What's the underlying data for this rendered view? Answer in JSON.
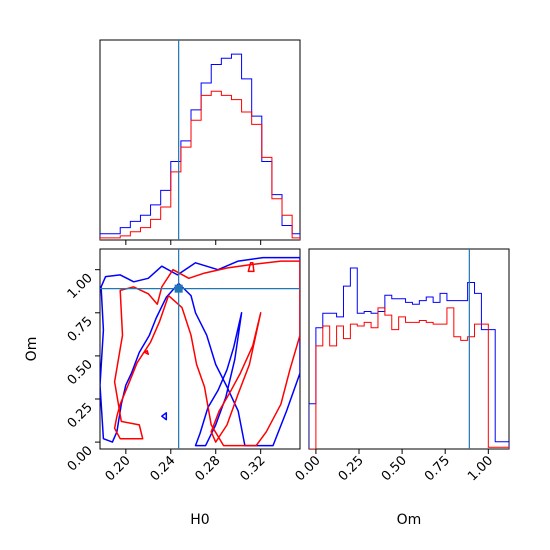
{
  "chart_data": {
    "type": "corner",
    "title": "",
    "parameters": [
      "H0",
      "Om"
    ],
    "xlabel_h0": "H0",
    "xlabel_om": "Om",
    "ylabel_om": "Om",
    "truth": {
      "H0": 0.247,
      "Om": 0.89
    },
    "colors": {
      "blue": "#0000ff",
      "red": "#ff0000",
      "truth": "#1f77b4"
    },
    "h0_range": [
      0.177,
      0.355
    ],
    "om_range": [
      -0.04,
      1.12
    ],
    "h0_ticks": [
      "0.20",
      "0.24",
      "0.28",
      "0.32"
    ],
    "h0_tick_values": [
      0.2,
      0.24,
      0.28,
      0.32
    ],
    "om_ticks": [
      "0.00",
      "0.25",
      "0.50",
      "0.75",
      "1.00"
    ],
    "om_tick_values": [
      0.0,
      0.25,
      0.5,
      0.75,
      1.0
    ],
    "series": [
      {
        "color": "#0000ff",
        "h0_edges": [
          0.177,
          0.186,
          0.195,
          0.204,
          0.213,
          0.222,
          0.231,
          0.24,
          0.249,
          0.258,
          0.267,
          0.276,
          0.285,
          0.294,
          0.303,
          0.312,
          0.321,
          0.33,
          0.339,
          0.348,
          0.355
        ],
        "h0_hist": [
          0.03,
          0.03,
          0.06,
          0.09,
          0.12,
          0.17,
          0.24,
          0.38,
          0.48,
          0.63,
          0.76,
          0.85,
          0.88,
          0.9,
          0.78,
          0.6,
          0.38,
          0.22,
          0.07,
          0.03
        ],
        "om_edges": [
          -0.04,
          0.0,
          0.04,
          0.08,
          0.12,
          0.16,
          0.2,
          0.24,
          0.28,
          0.32,
          0.36,
          0.4,
          0.44,
          0.48,
          0.52,
          0.56,
          0.6,
          0.64,
          0.68,
          0.72,
          0.76,
          0.8,
          0.84,
          0.88,
          0.92,
          0.96,
          1.0,
          1.04,
          1.08,
          1.12
        ],
        "om_hist": [
          0.25,
          0.67,
          0.75,
          0.75,
          0.73,
          0.9,
          1.0,
          0.75,
          0.76,
          0.75,
          0.76,
          0.85,
          0.83,
          0.83,
          0.81,
          0.8,
          0.82,
          0.84,
          0.81,
          0.86,
          0.82,
          0.82,
          0.82,
          0.92,
          0.86,
          0.66,
          0.66,
          0.04,
          0.04
        ],
        "contours": [
          [
            [
              0.182,
              0.96
            ],
            [
              0.195,
              0.97
            ],
            [
              0.207,
              0.93
            ],
            [
              0.22,
              0.95
            ],
            [
              0.232,
              1.02
            ],
            [
              0.246,
              0.97
            ],
            [
              0.262,
              1.04
            ],
            [
              0.282,
              1.0
            ],
            [
              0.3,
              1.05
            ],
            [
              0.322,
              1.07
            ],
            [
              0.355,
              1.07
            ],
            [
              0.355,
              0.4
            ],
            [
              0.343,
              0.18
            ],
            [
              0.331,
              -0.02
            ],
            [
              0.306,
              -0.02
            ],
            [
              0.3,
              0.18
            ],
            [
              0.29,
              0.32
            ],
            [
              0.28,
              0.45
            ],
            [
              0.272,
              0.62
            ],
            [
              0.262,
              0.75
            ],
            [
              0.258,
              0.85
            ],
            [
              0.247,
              0.92
            ],
            [
              0.236,
              0.84
            ],
            [
              0.227,
              0.72
            ],
            [
              0.221,
              0.62
            ],
            [
              0.212,
              0.52
            ],
            [
              0.205,
              0.4
            ],
            [
              0.2,
              0.33
            ],
            [
              0.196,
              0.22
            ],
            [
              0.192,
              0.06
            ],
            [
              0.188,
              0.0
            ],
            [
              0.18,
              0.02
            ],
            [
              0.177,
              0.33
            ],
            [
              0.18,
              0.65
            ],
            [
              0.178,
              0.9
            ],
            [
              0.182,
              0.96
            ]
          ],
          [
            [
              0.303,
              0.75
            ],
            [
              0.296,
              0.55
            ],
            [
              0.29,
              0.42
            ],
            [
              0.282,
              0.3
            ],
            [
              0.273,
              0.2
            ],
            [
              0.266,
              0.05
            ],
            [
              0.262,
              -0.02
            ],
            [
              0.271,
              -0.02
            ],
            [
              0.28,
              0.1
            ],
            [
              0.289,
              0.26
            ],
            [
              0.297,
              0.48
            ],
            [
              0.303,
              0.75
            ]
          ],
          [
            [
              0.232,
              0.15
            ],
            [
              0.236,
              0.13
            ],
            [
              0.236,
              0.17
            ],
            [
              0.232,
              0.15
            ]
          ]
        ]
      },
      {
        "color": "#ff0000",
        "h0_edges": [
          0.177,
          0.186,
          0.195,
          0.204,
          0.213,
          0.222,
          0.231,
          0.24,
          0.249,
          0.258,
          0.267,
          0.276,
          0.285,
          0.294,
          0.303,
          0.312,
          0.321,
          0.33,
          0.339,
          0.348,
          0.355
        ],
        "h0_hist": [
          0.01,
          0.01,
          0.02,
          0.04,
          0.06,
          0.1,
          0.16,
          0.33,
          0.45,
          0.58,
          0.7,
          0.72,
          0.7,
          0.68,
          0.62,
          0.56,
          0.4,
          0.2,
          0.12,
          0.01
        ],
        "om_edges": [
          -0.04,
          0.0,
          0.04,
          0.08,
          0.12,
          0.16,
          0.2,
          0.24,
          0.28,
          0.32,
          0.36,
          0.4,
          0.44,
          0.48,
          0.52,
          0.56,
          0.6,
          0.64,
          0.68,
          0.72,
          0.76,
          0.8,
          0.84,
          0.88,
          0.92,
          0.96,
          1.0,
          1.04,
          1.08,
          1.12
        ],
        "om_hist": [
          0.0,
          0.57,
          0.68,
          0.57,
          0.68,
          0.61,
          0.69,
          0.68,
          0.7,
          0.67,
          0.78,
          0.74,
          0.66,
          0.73,
          0.7,
          0.7,
          0.71,
          0.7,
          0.69,
          0.69,
          0.78,
          0.62,
          0.6,
          0.62,
          0.69,
          0.69,
          0.01,
          0.01,
          0.01
        ],
        "contours": [
          [
            [
              0.195,
              0.88
            ],
            [
              0.207,
              0.9
            ],
            [
              0.22,
              0.86
            ],
            [
              0.228,
              0.8
            ],
            [
              0.232,
              0.9
            ],
            [
              0.242,
              1.0
            ],
            [
              0.256,
              0.95
            ],
            [
              0.27,
              0.98
            ],
            [
              0.29,
              1.01
            ],
            [
              0.312,
              1.03
            ],
            [
              0.338,
              1.05
            ],
            [
              0.355,
              1.05
            ],
            [
              0.355,
              0.62
            ],
            [
              0.346,
              0.42
            ],
            [
              0.338,
              0.22
            ],
            [
              0.325,
              0.06
            ],
            [
              0.316,
              -0.02
            ],
            [
              0.287,
              -0.02
            ],
            [
              0.276,
              0.1
            ],
            [
              0.27,
              0.32
            ],
            [
              0.263,
              0.45
            ],
            [
              0.258,
              0.62
            ],
            [
              0.25,
              0.78
            ],
            [
              0.238,
              0.85
            ],
            [
              0.23,
              0.7
            ],
            [
              0.222,
              0.58
            ],
            [
              0.21,
              0.46
            ],
            [
              0.202,
              0.33
            ],
            [
              0.195,
              0.22
            ],
            [
              0.192,
              0.15
            ],
            [
              0.19,
              0.08
            ],
            [
              0.195,
              0.02
            ],
            [
              0.215,
              0.02
            ],
            [
              0.212,
              0.1
            ],
            [
              0.196,
              0.12
            ],
            [
              0.19,
              0.35
            ],
            [
              0.197,
              0.62
            ],
            [
              0.195,
              0.88
            ]
          ],
          [
            [
              0.32,
              0.75
            ],
            [
              0.313,
              0.56
            ],
            [
              0.302,
              0.4
            ],
            [
              0.292,
              0.28
            ],
            [
              0.283,
              0.18
            ],
            [
              0.276,
              0.06
            ],
            [
              0.28,
              0.0
            ],
            [
              0.29,
              0.1
            ],
            [
              0.3,
              0.28
            ],
            [
              0.31,
              0.45
            ],
            [
              0.32,
              0.75
            ]
          ],
          [
            [
              0.311,
              1.04
            ],
            [
              0.309,
              0.99
            ],
            [
              0.314,
              0.99
            ],
            [
              0.313,
              1.04
            ],
            [
              0.311,
              1.04
            ]
          ],
          [
            [
              0.217,
              0.52
            ],
            [
              0.22,
              0.51
            ],
            [
              0.219,
              0.53
            ],
            [
              0.217,
              0.52
            ]
          ]
        ]
      }
    ]
  }
}
